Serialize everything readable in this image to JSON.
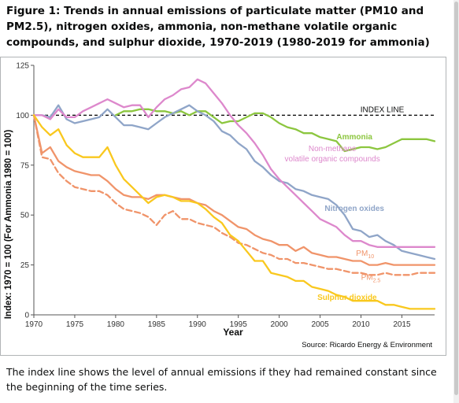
{
  "figure": {
    "title": "Figure 1: Trends in annual emissions of particulate matter (PM10 and PM2.5), nitrogen oxides, ammonia, non-methane volatile organic compounds, and sulphur dioxide, 1970-2019 (1980-2019 for ammonia)",
    "caption": "The index line shows the level of annual emissions if they had remained constant since the beginning of the time series."
  },
  "chart_data": {
    "type": "line",
    "xlabel": "Year",
    "ylabel": "Index: 1970 = 100 (For Ammonia 1980 = 100)",
    "xlim": [
      1970,
      2019
    ],
    "ylim": [
      0,
      125
    ],
    "xticks": [
      1970,
      1975,
      1980,
      1985,
      1990,
      1995,
      2000,
      2005,
      2010,
      2015
    ],
    "yticks": [
      0,
      25,
      50,
      75,
      100,
      125
    ],
    "grid": false,
    "source": "Source: Ricardo Energy & Environment",
    "index_line": {
      "label": "INDEX LINE",
      "value": 100,
      "color": "#000000"
    },
    "series": [
      {
        "name": "Ammonia",
        "color": "#8cc63f",
        "dash": false,
        "label_year": 2009.2,
        "label_value": 88,
        "label_weight": "bold",
        "x": [
          1980,
          1981,
          1982,
          1983,
          1984,
          1985,
          1986,
          1987,
          1988,
          1989,
          1990,
          1991,
          1992,
          1993,
          1994,
          1995,
          1996,
          1997,
          1998,
          1999,
          2000,
          2001,
          2002,
          2003,
          2004,
          2005,
          2006,
          2007,
          2008,
          2009,
          2010,
          2011,
          2012,
          2013,
          2014,
          2015,
          2016,
          2017,
          2018,
          2019
        ],
        "values": [
          100,
          102,
          102,
          103,
          103,
          102,
          102,
          101,
          102,
          100,
          102,
          102,
          99,
          96,
          97,
          97,
          99,
          101,
          101,
          99,
          96,
          94,
          93,
          91,
          91,
          89,
          88,
          87,
          82,
          83,
          84,
          84,
          83,
          84,
          86,
          88,
          88,
          88,
          88,
          87
        ]
      },
      {
        "name": "Nitrogen oxides",
        "color": "#8fa5c8",
        "dash": false,
        "label_year": 2009.2,
        "label_value": 52,
        "label_weight": "bold",
        "x": [
          1970,
          1971,
          1972,
          1973,
          1974,
          1975,
          1976,
          1977,
          1978,
          1979,
          1980,
          1981,
          1982,
          1983,
          1984,
          1985,
          1986,
          1987,
          1988,
          1989,
          1990,
          1991,
          1992,
          1993,
          1994,
          1995,
          1996,
          1997,
          1998,
          1999,
          2000,
          2001,
          2002,
          2003,
          2004,
          2005,
          2006,
          2007,
          2008,
          2009,
          2010,
          2011,
          2012,
          2013,
          2014,
          2015,
          2016,
          2017,
          2018,
          2019
        ],
        "values": [
          100,
          100,
          99,
          105,
          98,
          96,
          97,
          98,
          99,
          103,
          99,
          95,
          95,
          94,
          93,
          96,
          99,
          101,
          103,
          105,
          102,
          100,
          97,
          92,
          90,
          86,
          83,
          77,
          74,
          70,
          67,
          66,
          63,
          62,
          60,
          59,
          58,
          55,
          50,
          43,
          42,
          39,
          40,
          37,
          35,
          32,
          31,
          30,
          29,
          28
        ]
      },
      {
        "name": "Non-methane",
        "label_line2": "volatile organic compounds",
        "color": "#dd88cc",
        "dash": false,
        "label_year": 2006.5,
        "label_value": 82,
        "label_weight": "normal",
        "x": [
          1970,
          1971,
          1972,
          1973,
          1974,
          1975,
          1976,
          1977,
          1978,
          1979,
          1980,
          1981,
          1982,
          1983,
          1984,
          1985,
          1986,
          1987,
          1988,
          1989,
          1990,
          1991,
          1992,
          1993,
          1994,
          1995,
          1996,
          1997,
          1998,
          1999,
          2000,
          2001,
          2002,
          2003,
          2004,
          2005,
          2006,
          2007,
          2008,
          2009,
          2010,
          2011,
          2012,
          2013,
          2014,
          2015,
          2016,
          2017,
          2018,
          2019
        ],
        "values": [
          100,
          100,
          98,
          103,
          99,
          99,
          102,
          104,
          106,
          108,
          106,
          104,
          105,
          105,
          99,
          104,
          108,
          110,
          113,
          114,
          118,
          116,
          111,
          106,
          100,
          95,
          91,
          86,
          80,
          73,
          68,
          64,
          60,
          56,
          52,
          48,
          46,
          44,
          40,
          37,
          37,
          35,
          34,
          34,
          34,
          34,
          34,
          34,
          34,
          34
        ]
      },
      {
        "name": "PM10",
        "sub": "10",
        "color": "#f0946a",
        "dash": false,
        "label_year": 2010.5,
        "label_value": 29.5,
        "label_weight": "normal",
        "x": [
          1970,
          1971,
          1972,
          1973,
          1974,
          1975,
          1976,
          1977,
          1978,
          1979,
          1980,
          1981,
          1982,
          1983,
          1984,
          1985,
          1986,
          1987,
          1988,
          1989,
          1990,
          1991,
          1992,
          1993,
          1994,
          1995,
          1996,
          1997,
          1998,
          1999,
          2000,
          2001,
          2002,
          2003,
          2004,
          2005,
          2006,
          2007,
          2008,
          2009,
          2010,
          2011,
          2012,
          2013,
          2014,
          2015,
          2016,
          2017,
          2018,
          2019
        ],
        "values": [
          100,
          81,
          84,
          77,
          74,
          72,
          71,
          70,
          70,
          67,
          63,
          60,
          59,
          59,
          58,
          60,
          60,
          59,
          58,
          58,
          56,
          55,
          52,
          50,
          47,
          44,
          43,
          40,
          38,
          37,
          35,
          35,
          32,
          34,
          31,
          30,
          29,
          29,
          28,
          27,
          27,
          25,
          25,
          26,
          25,
          25,
          25,
          25,
          25,
          25
        ]
      },
      {
        "name": "PM2.5",
        "sub": "2.5",
        "color": "#f0946a",
        "dash": true,
        "label_year": 2011.2,
        "label_value": 17.5,
        "label_weight": "normal",
        "x": [
          1970,
          1971,
          1972,
          1973,
          1974,
          1975,
          1976,
          1977,
          1978,
          1979,
          1980,
          1981,
          1982,
          1983,
          1984,
          1985,
          1986,
          1987,
          1988,
          1989,
          1990,
          1991,
          1992,
          1993,
          1994,
          1995,
          1996,
          1997,
          1998,
          1999,
          2000,
          2001,
          2002,
          2003,
          2004,
          2005,
          2006,
          2007,
          2008,
          2009,
          2010,
          2011,
          2012,
          2013,
          2014,
          2015,
          2016,
          2017,
          2018,
          2019
        ],
        "values": [
          100,
          79,
          78,
          71,
          67,
          64,
          63,
          62,
          62,
          60,
          56,
          53,
          52,
          51,
          49,
          45,
          50,
          52,
          48,
          48,
          46,
          45,
          44,
          41,
          39,
          36,
          35,
          33,
          31,
          30,
          28,
          28,
          26,
          26,
          25,
          24,
          23,
          23,
          22,
          21,
          21,
          20,
          20,
          21,
          20,
          20,
          20,
          21,
          21,
          21
        ]
      },
      {
        "name": "Sulphur dioxide",
        "color": "#f9c81e",
        "dash": false,
        "label_year": 2008.3,
        "label_value": 7.5,
        "label_weight": "bold",
        "x": [
          1970,
          1971,
          1972,
          1973,
          1974,
          1975,
          1976,
          1977,
          1978,
          1979,
          1980,
          1981,
          1982,
          1983,
          1984,
          1985,
          1986,
          1987,
          1988,
          1989,
          1990,
          1991,
          1992,
          1993,
          1994,
          1995,
          1996,
          1997,
          1998,
          1999,
          2000,
          2001,
          2002,
          2003,
          2004,
          2005,
          2006,
          2007,
          2008,
          2009,
          2010,
          2011,
          2012,
          2013,
          2014,
          2015,
          2016,
          2017,
          2018,
          2019
        ],
        "values": [
          100,
          94,
          90,
          93,
          85,
          81,
          79,
          79,
          79,
          84,
          75,
          68,
          64,
          60,
          56,
          59,
          60,
          59,
          57,
          57,
          56,
          53,
          49,
          46,
          40,
          37,
          32,
          27,
          27,
          21,
          20,
          19,
          17,
          17,
          14,
          13,
          12,
          10,
          9,
          7,
          7,
          7,
          7,
          5,
          5,
          4,
          3,
          3,
          3,
          3
        ]
      }
    ]
  }
}
